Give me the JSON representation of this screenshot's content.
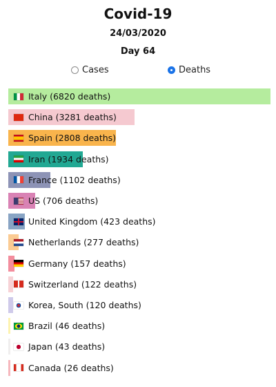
{
  "header": {
    "title": "Covid-19",
    "date": "24/03/2020",
    "day": "Day 64"
  },
  "toggle": {
    "options": [
      {
        "label": "Cases",
        "selected": false
      },
      {
        "label": "Deaths",
        "selected": true
      }
    ]
  },
  "chart_data": {
    "type": "bar",
    "orientation": "horizontal",
    "categories": [
      "Italy",
      "China",
      "Spain",
      "Iran",
      "France",
      "US",
      "United Kingdom",
      "Netherlands",
      "Germany",
      "Switzerland",
      "Korea, South",
      "Brazil",
      "Japan",
      "Canada"
    ],
    "values": [
      6820,
      3281,
      2808,
      1934,
      1102,
      706,
      423,
      277,
      157,
      122,
      120,
      46,
      43,
      26
    ],
    "labels": [
      "Italy (6820 deaths)",
      "China (3281 deaths)",
      "Spain (2808 deaths)",
      "Iran (1934 deaths)",
      "France (1102 deaths)",
      "US (706 deaths)",
      "United Kingdom (423 deaths)",
      "Netherlands (277 deaths)",
      "Germany (157 deaths)",
      "Switzerland (122 deaths)",
      "Korea, South (120 deaths)",
      "Brazil (46 deaths)",
      "Japan (43 deaths)",
      "Canada (26 deaths)"
    ],
    "colors": [
      "#b5ec9e",
      "#f5c9d0",
      "#f9b44c",
      "#21a893",
      "#8d93b6",
      "#d982b4",
      "#88a4c4",
      "#fbcb93",
      "#f38d9d",
      "#f7d2d6",
      "#cfcaea",
      "#fdf3b0",
      "#f0eeee",
      "#f6b7bd"
    ],
    "flags": [
      "italy-flag-icon",
      "china-flag-icon",
      "spain-flag-icon",
      "iran-flag-icon",
      "france-flag-icon",
      "us-flag-icon",
      "uk-flag-icon",
      "netherlands-flag-icon",
      "germany-flag-icon",
      "switzerland-flag-icon",
      "south-korea-flag-icon",
      "brazil-flag-icon",
      "japan-flag-icon",
      "canada-flag-icon"
    ],
    "xlim": [
      0,
      6820
    ]
  }
}
